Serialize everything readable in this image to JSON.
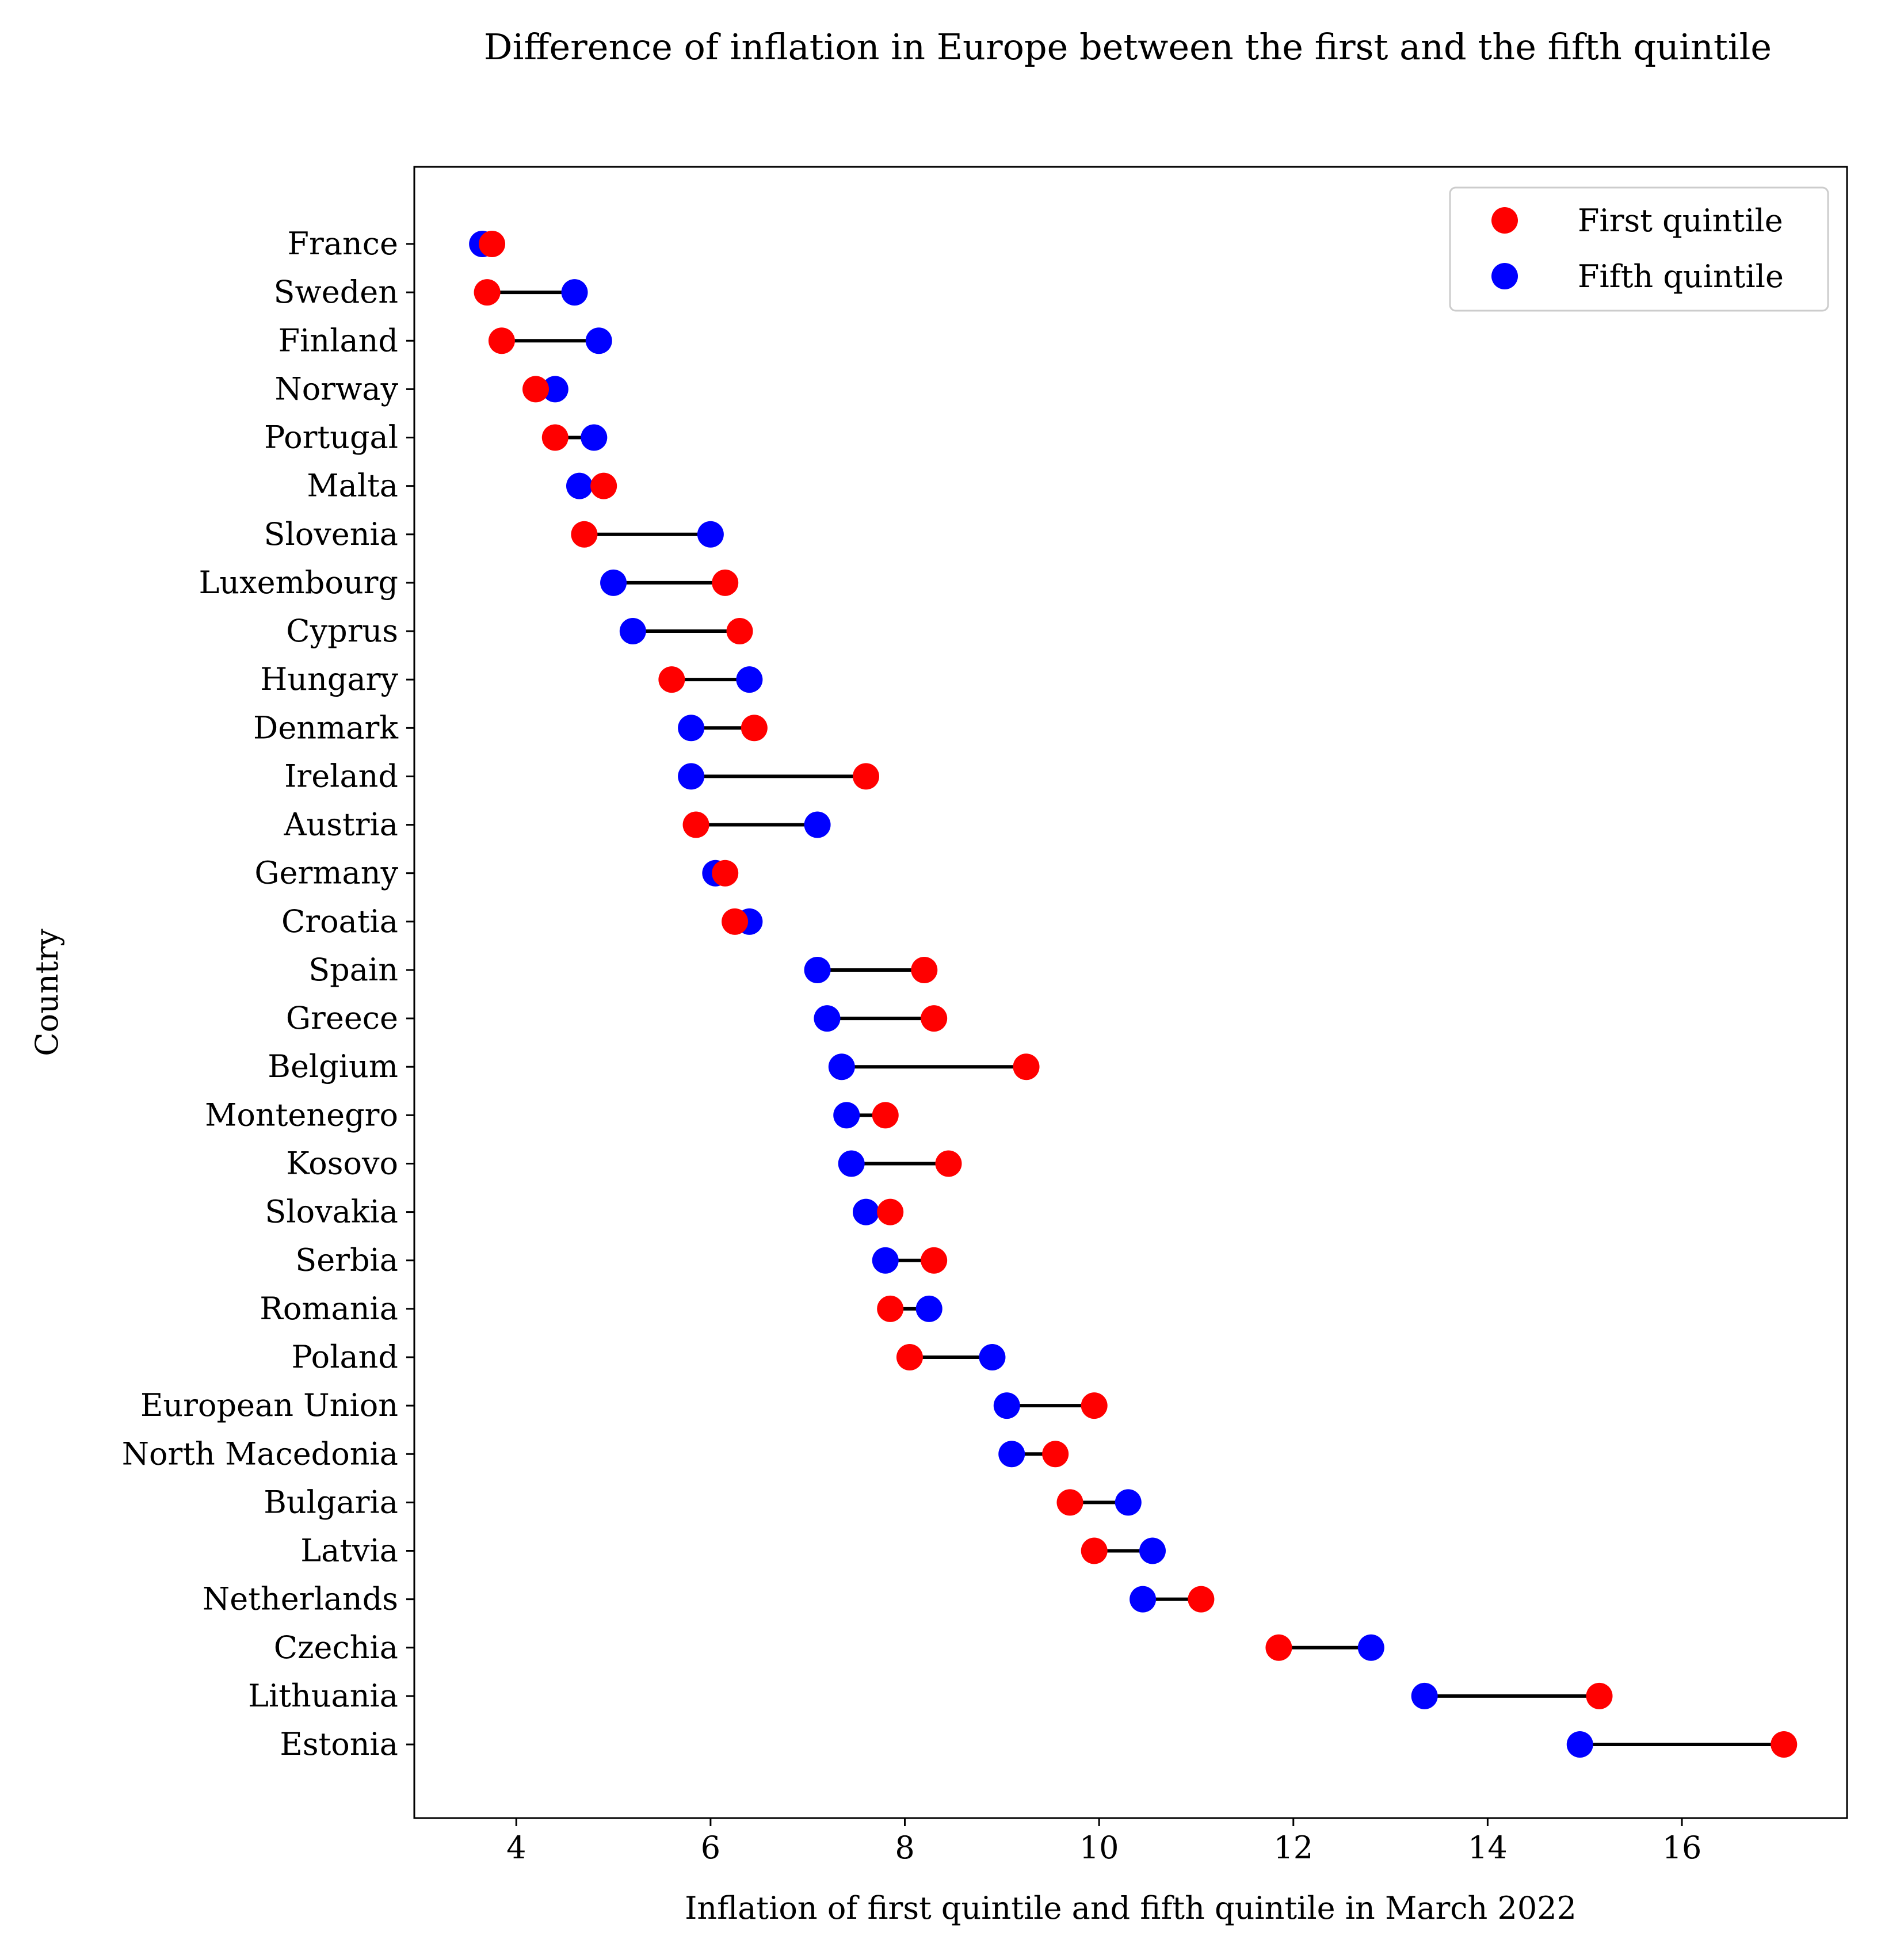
{
  "chart_data": {
    "type": "dumbbell",
    "title": "Difference of inflation in Europe between the first and the fifth quintile",
    "xlabel": "Inflation of first quintile and fifth quintile in March 2022",
    "ylabel": "Country",
    "xlim": [
      2.95,
      17.7
    ],
    "xticks": [
      4,
      6,
      8,
      10,
      12,
      14,
      16
    ],
    "xtick_labels": [
      "4",
      "6",
      "8",
      "10",
      "12",
      "14",
      "16"
    ],
    "grid": false,
    "legend_position": "top-right",
    "series": [
      {
        "name": "First quintile",
        "color": "#ff0000"
      },
      {
        "name": "Fifth quintile",
        "color": "#0000ff"
      }
    ],
    "connector_color": "#000000",
    "categories": [
      "France",
      "Sweden",
      "Finland",
      "Norway",
      "Portugal",
      "Malta",
      "Slovenia",
      "Luxembourg",
      "Cyprus",
      "Hungary",
      "Denmark",
      "Ireland",
      "Austria",
      "Germany",
      "Croatia",
      "Spain",
      "Greece",
      "Belgium",
      "Montenegro",
      "Kosovo",
      "Slovakia",
      "Serbia",
      "Romania",
      "Poland",
      "European Union",
      "North Macedonia",
      "Bulgaria",
      "Latvia",
      "Netherlands",
      "Czechia",
      "Lithuania",
      "Estonia"
    ],
    "first_quintile": [
      3.75,
      3.7,
      3.85,
      4.2,
      4.4,
      4.9,
      4.7,
      6.15,
      6.3,
      5.6,
      6.45,
      7.6,
      5.85,
      6.15,
      6.25,
      8.2,
      8.3,
      9.25,
      7.8,
      8.45,
      7.85,
      8.3,
      7.85,
      8.05,
      9.95,
      9.55,
      9.7,
      9.95,
      11.05,
      11.85,
      15.15,
      17.05
    ],
    "fifth_quintile": [
      3.65,
      4.6,
      4.85,
      4.4,
      4.8,
      4.65,
      6.0,
      5.0,
      5.2,
      6.4,
      5.8,
      5.8,
      7.1,
      6.05,
      6.4,
      7.1,
      7.2,
      7.35,
      7.4,
      7.45,
      7.6,
      7.8,
      8.25,
      8.9,
      9.05,
      9.1,
      10.3,
      10.55,
      10.45,
      12.8,
      13.35,
      14.95
    ]
  }
}
